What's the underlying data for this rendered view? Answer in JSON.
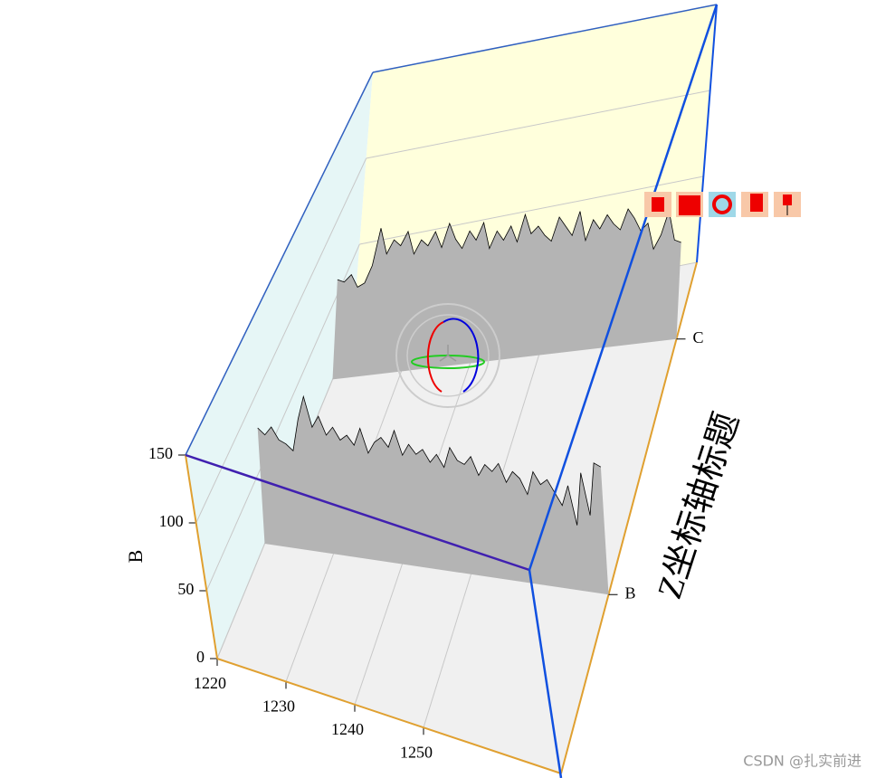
{
  "chart_data": {
    "type": "waterfall3d",
    "y_label": "B",
    "z_label": "Z坐标轴标题",
    "z_categories": [
      "B",
      "C"
    ],
    "x": [
      1220,
      1221,
      1222,
      1223,
      1224,
      1225,
      1226,
      1227,
      1228,
      1229,
      1230,
      1231,
      1232,
      1233,
      1234,
      1235,
      1236,
      1237,
      1238,
      1239,
      1240,
      1241,
      1242,
      1243,
      1244,
      1245,
      1246,
      1247,
      1248,
      1249,
      1250,
      1251,
      1252,
      1253,
      1254,
      1255,
      1256,
      1257,
      1258,
      1259,
      1260,
      1261,
      1262,
      1263,
      1264,
      1265,
      1266,
      1267,
      1268,
      1269,
      1270
    ],
    "series": [
      {
        "color": "#b4b4b4",
        "values": [
          78,
          74,
          80,
          72,
          70,
          66,
          88,
          104,
          84,
          92,
          80,
          86,
          78,
          82,
          76,
          88,
          72,
          80,
          84,
          78,
          90,
          74,
          82,
          76,
          80,
          72,
          78,
          70,
          84,
          76,
          74,
          80,
          68,
          76,
          72,
          78,
          66,
          74,
          70,
          60,
          76,
          68,
          72,
          64,
          56,
          70,
          44,
          80,
          52,
          88,
          86
        ]
      },
      {
        "color": "#b4b4b4",
        "values": [
          60,
          58,
          62,
          54,
          56,
          66,
          88,
          72,
          80,
          76,
          84,
          70,
          78,
          74,
          82,
          72,
          86,
          76,
          70,
          80,
          74,
          84,
          68,
          78,
          72,
          80,
          70,
          86,
          74,
          78,
          72,
          68,
          82,
          76,
          70,
          84,
          66,
          78,
          72,
          80,
          74,
          70,
          82,
          76,
          68,
          72,
          56,
          64,
          78,
          60,
          58
        ]
      }
    ],
    "xlim": [
      1220,
      1270
    ],
    "xticks": [
      1220,
      1230,
      1240,
      1250
    ],
    "ylim": [
      0,
      150
    ],
    "yticks": [
      0,
      50,
      100,
      150
    ],
    "grid": true
  },
  "watermark": "CSDN @扎实前进"
}
